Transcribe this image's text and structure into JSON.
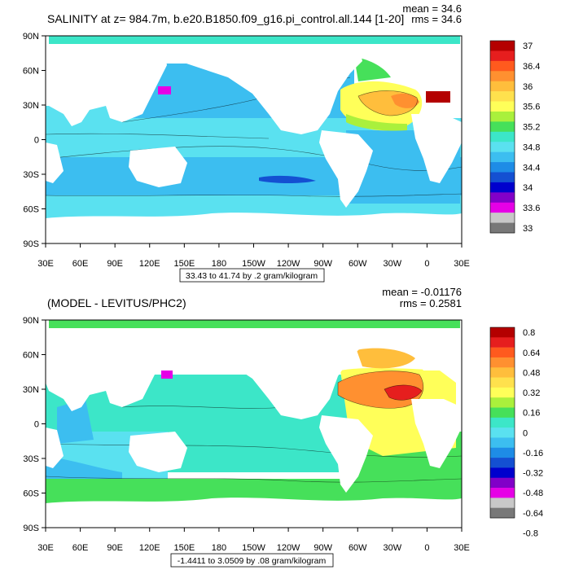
{
  "chart_data": [
    {
      "type": "heatmap",
      "title": "SALINITY at z= 984.7m, b.e20.B1850.f09_g16.pi_control.all.144 [1-20]",
      "stats": {
        "mean": "mean = 34.6",
        "rms": "rms = 34.6"
      },
      "range_label": "33.43 to 41.74 by .2 gram/kilogram",
      "x_ticks": [
        "30E",
        "60E",
        "90E",
        "120E",
        "150E",
        "180",
        "150W",
        "120W",
        "90W",
        "60W",
        "30W",
        "0",
        "30E"
      ],
      "y_ticks": [
        "90N",
        "60N",
        "30N",
        "0",
        "30S",
        "60S",
        "90S"
      ],
      "colorbar_labels": [
        "37",
        "36.4",
        "36",
        "35.6",
        "35.2",
        "34.8",
        "34.4",
        "34",
        "33.6",
        "33"
      ],
      "colorbar_colors": [
        "#b40000",
        "#e61e1e",
        "#ff5a1e",
        "#ff9030",
        "#ffbe3c",
        "#ffe14d",
        "#ffff59",
        "#aaf03c",
        "#46e05a",
        "#3ce6c8",
        "#5ae1f0",
        "#3cbef0",
        "#1e8ce6",
        "#1450d2",
        "#0000cd",
        "#8200c8",
        "#e600e6",
        "#c8c8c8",
        "#787878"
      ]
    },
    {
      "type": "heatmap",
      "title": "(MODEL - LEVITUS/PHC2)",
      "stats": {
        "mean": "mean = -0.01176",
        "rms": "rms = 0.2581"
      },
      "range_label": "-1.4411 to 3.0509 by .08 gram/kilogram",
      "x_ticks": [
        "30E",
        "60E",
        "90E",
        "120E",
        "150E",
        "180",
        "150W",
        "120W",
        "90W",
        "60W",
        "30W",
        "0",
        "30E"
      ],
      "y_ticks": [
        "90N",
        "60N",
        "30N",
        "0",
        "30S",
        "60S",
        "90S"
      ],
      "colorbar_labels": [
        "0.8",
        "0.64",
        "0.48",
        "0.32",
        "0.16",
        "0",
        "-0.16",
        "-0.32",
        "-0.48",
        "-0.64",
        "-0.8"
      ],
      "colorbar_colors": [
        "#b40000",
        "#e61e1e",
        "#ff5a1e",
        "#ff9030",
        "#ffbe3c",
        "#ffe14d",
        "#ffff59",
        "#aaf03c",
        "#46e05a",
        "#3ce6c8",
        "#5ae1f0",
        "#3cbef0",
        "#1e8ce6",
        "#1450d2",
        "#0000cd",
        "#8200c8",
        "#e600e6",
        "#c8c8c8",
        "#787878"
      ]
    }
  ]
}
